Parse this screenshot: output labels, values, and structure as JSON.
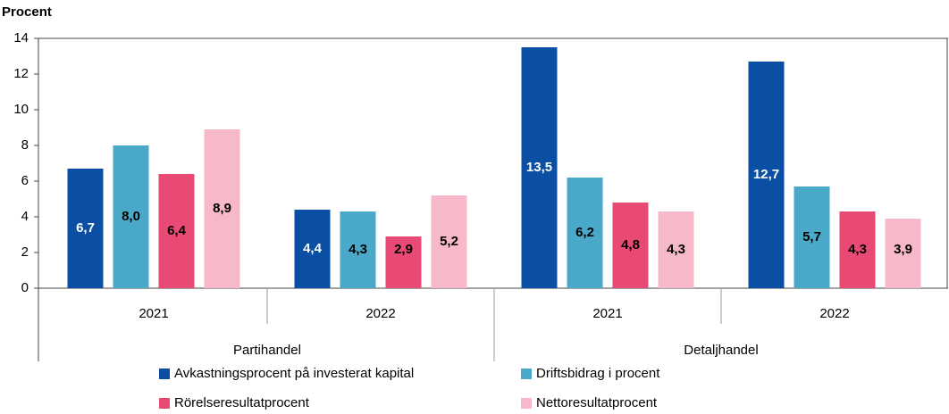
{
  "chart_data": {
    "type": "bar",
    "y_label": "Procent",
    "categories": [
      "2021",
      "2022",
      "2021",
      "2022"
    ],
    "groups": [
      "Partihandel",
      "Detaljhandel"
    ],
    "series": [
      {
        "name": "Avkastningsprocent på investerat kapital",
        "color": "#0a4fa3",
        "values": [
          6.7,
          4.4,
          13.5,
          12.7
        ],
        "value_labels": [
          "6,7",
          "4,4",
          "13,5",
          "12,7"
        ]
      },
      {
        "name": "Driftsbidrag i procent",
        "color": "#4aa8c8",
        "values": [
          8.0,
          4.3,
          6.2,
          5.7
        ],
        "value_labels": [
          "8,0",
          "4,3",
          "6,2",
          "5,7"
        ]
      },
      {
        "name": "Rörelseresultatprocent",
        "color": "#e84a74",
        "values": [
          6.4,
          2.9,
          4.8,
          4.3
        ],
        "value_labels": [
          "6,4",
          "2,9",
          "4,8",
          "4,3"
        ]
      },
      {
        "name": "Nettoresultatprocent",
        "color": "#f7b8c9",
        "values": [
          8.9,
          5.2,
          4.3,
          3.9
        ],
        "value_labels": [
          "8,9",
          "5,2",
          "4,3",
          "3,9"
        ]
      }
    ],
    "ylim": [
      0,
      14
    ],
    "yticks": [
      0,
      2,
      4,
      6,
      8,
      10,
      12,
      14
    ],
    "legend": "bottom"
  }
}
